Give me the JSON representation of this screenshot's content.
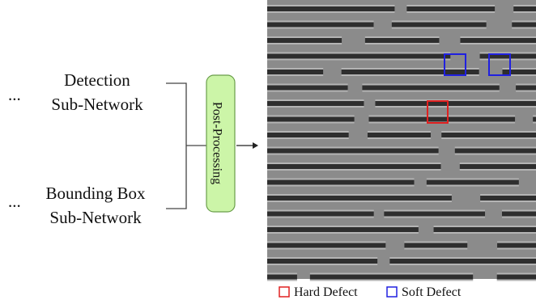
{
  "left": {
    "top_ellipsis": "...",
    "detection": [
      "Detection",
      "Sub-Network"
    ],
    "bottom_ellipsis": "...",
    "bounding_box": [
      "Bounding Box",
      "Sub-Network"
    ]
  },
  "post_processing": "Post-Processing",
  "legend": {
    "hard": "Hard Defect",
    "soft": "Soft Defect"
  }
}
